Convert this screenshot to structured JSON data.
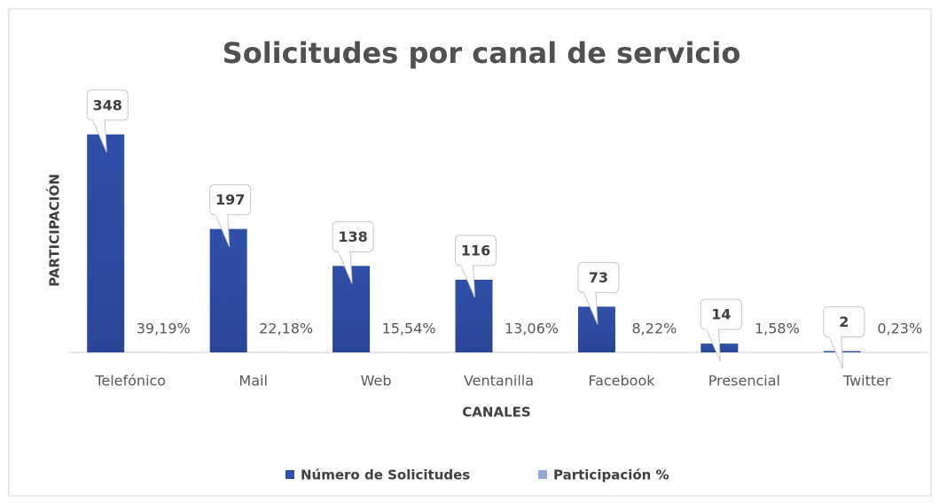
{
  "chart_data": {
    "type": "bar",
    "title": "Solicitudes por canal de servicio",
    "ylabel": "PARTICIPACIÓN",
    "xlabel": "CANALES",
    "categories": [
      "Telefónico",
      "Mail",
      "Web",
      "Ventanilla",
      "Facebook",
      "Presencial",
      "Twitter"
    ],
    "series": [
      {
        "name": "Número de Solicitudes",
        "color": "#3050a8",
        "values": [
          348,
          197,
          138,
          116,
          73,
          14,
          2
        ]
      },
      {
        "name": "Participación %",
        "color": "#8fa6d9",
        "values": [
          0.3919,
          0.2218,
          0.1554,
          0.1306,
          0.0822,
          0.0158,
          0.0023
        ],
        "value_labels": [
          "39,19%",
          "22,18%",
          "15,54%",
          "13,06%",
          "8,22%",
          "1,58%",
          "0,23%"
        ]
      }
    ],
    "ylim": [
      0,
      400
    ],
    "legend": "bottom"
  }
}
